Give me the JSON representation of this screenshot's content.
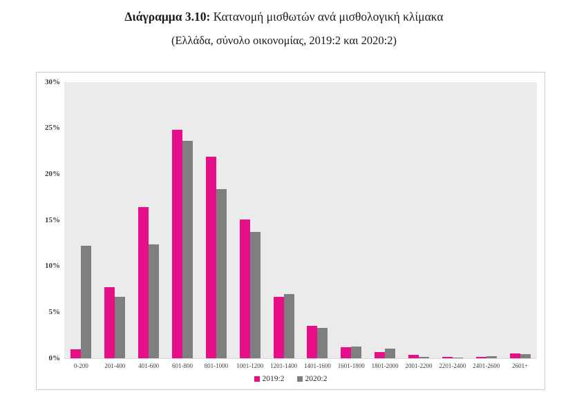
{
  "title": {
    "prefix": "Διάγραμμα 3.10:",
    "rest": "Κατανομή μισθωτών ανά μισθολογική κλίμακα",
    "subtitle": "(Ελλάδα, σύνολο οικονομίας, 2019:2 και 2020:2)"
  },
  "colors": {
    "series_2019": "#e60f87",
    "series_2020": "#7f7f7f",
    "plot_background": "#ebebeb",
    "frame_border": "#c9c9c9",
    "axis_text": "#3d3d3d"
  },
  "chart_data": {
    "type": "bar",
    "title": "Διάγραμμα 3.10: Κατανομή μισθωτών ανά μισθολογική κλίμακα",
    "subtitle": "(Ελλάδα, σύνολο οικονομίας, 2019:2 και 2020:2)",
    "categories": [
      "0-200",
      "201-400",
      "401-600",
      "601-800",
      "801-1000",
      "1001-1200",
      "1201-1400",
      "1401-1600",
      "1601-1800",
      "1801-2000",
      "2001-2200",
      "2201-2400",
      "2401-2600",
      "2601+"
    ],
    "series": [
      {
        "name": "2019:2",
        "color": "#e60f87",
        "values": [
          1.0,
          7.7,
          16.4,
          24.8,
          21.9,
          15.1,
          6.7,
          3.5,
          1.2,
          0.7,
          0.35,
          0.15,
          0.15,
          0.5
        ]
      },
      {
        "name": "2020:2",
        "color": "#7f7f7f",
        "values": [
          12.2,
          6.7,
          12.4,
          23.6,
          18.4,
          13.7,
          7.0,
          3.3,
          1.3,
          1.05,
          0.15,
          0.1,
          0.2,
          0.45
        ]
      }
    ],
    "xlabel": "",
    "ylabel": "",
    "ylim": [
      0,
      30
    ],
    "ytick_step": 5,
    "ytick_labels": [
      "0%",
      "5%",
      "10%",
      "15%",
      "20%",
      "25%",
      "30%"
    ],
    "grid": false,
    "legend_position": "bottom"
  }
}
